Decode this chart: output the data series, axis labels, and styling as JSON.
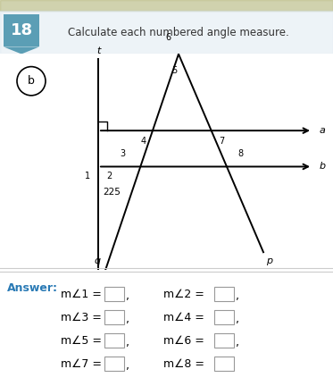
{
  "title_num": "18",
  "title_text": "Calculate each numbered angle measure.",
  "part_label": "b",
  "angle_label": "225",
  "answer_labels": [
    [
      "m∠1 =",
      "m∠2 ="
    ],
    [
      "m∠3 =",
      "m∠4 ="
    ],
    [
      "m∠5 =",
      "m∠6 ="
    ],
    [
      "m∠7 =",
      "m∠8 ="
    ]
  ],
  "background_color": "#ffffff",
  "header_bg": "#e8f0f5",
  "teal_box_color": "#5b9eb5",
  "answer_color": "#2a7ab5"
}
